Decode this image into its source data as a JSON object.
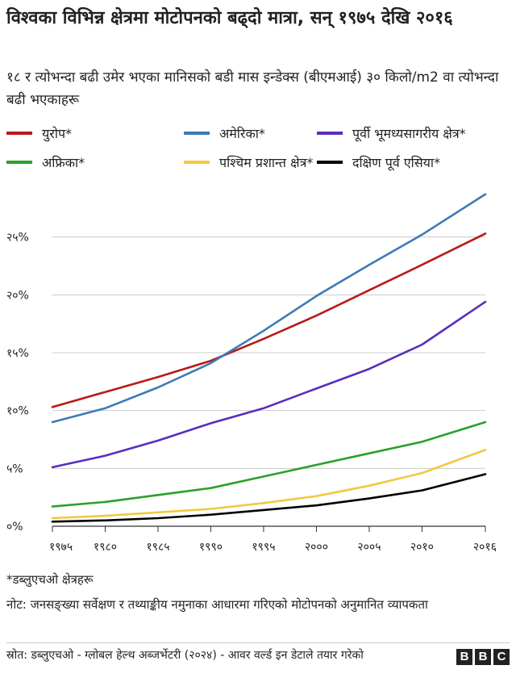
{
  "title": "विश्वका विभिन्न क्षेत्रमा मोटोपनको बढ्दो मात्रा, सन् १९७५ देखि २०१६",
  "subtitle": "१८ र त्योभन्दा बढी उमेर भएका मानिसको बडी मास इन्डेक्स (बीएमआई) ३० किलो/m2 वा त्योभन्दा बढी भएकाहरू",
  "footnote": "*डब्लुएचओ क्षेत्रहरू",
  "note": "नोट: जनसङ्ख्या सर्वेक्षण र तथ्याङ्कीय नमुनाका आधारमा गरिएको मोटोपनको अनुमानित व्यापकता",
  "source": "स्रोत: डब्लुएचओ - ग्लोबल हेल्थ अब्जर्भेटरी (२०२४) - आवर वर्ल्ड इन डेटाले तयार गरेको",
  "logo_letters": [
    "B",
    "B",
    "C"
  ],
  "chart_data": {
    "type": "line",
    "title": "विश्वका विभिन्न क्षेत्रमा मोटोपनको बढ्दो मात्रा, सन् १९७५ देखि २०१६",
    "xlabel": "",
    "ylabel": "",
    "x": [
      1975,
      1980,
      1985,
      1990,
      1995,
      2000,
      2005,
      2010,
      2016
    ],
    "xlim": [
      1975,
      2016
    ],
    "ylim": [
      0,
      30
    ],
    "x_ticks": [
      1975,
      1980,
      1985,
      1990,
      1995,
      2000,
      2005,
      2010,
      2016
    ],
    "x_tick_labels": [
      "१९७५",
      "१९८०",
      "१९८५",
      "१९९०",
      "१९९५",
      "२०००",
      "२००५",
      "२०१०",
      "२०१६"
    ],
    "y_ticks": [
      0,
      5,
      10,
      15,
      20,
      25
    ],
    "y_tick_labels": [
      "०%",
      "५%",
      "१०%",
      "१५%",
      "२०%",
      "२५%"
    ],
    "grid": true,
    "legend_position": "top",
    "series": [
      {
        "name": "युरोप*",
        "color": "#bb1919",
        "values": [
          10.3,
          11.6,
          12.9,
          14.3,
          16.2,
          18.2,
          20.4,
          22.6,
          25.3
        ]
      },
      {
        "name": "अमेरिका*",
        "color": "#3d7ab8",
        "values": [
          9.0,
          10.2,
          12.0,
          14.1,
          16.9,
          19.9,
          22.6,
          25.2,
          28.7
        ]
      },
      {
        "name": "पूर्वी भूमध्यसागरीय क्षेत्र*",
        "color": "#5a2ebd",
        "values": [
          5.1,
          6.1,
          7.4,
          8.9,
          10.2,
          11.9,
          13.6,
          15.7,
          19.4
        ]
      },
      {
        "name": "अफ्रिका*",
        "color": "#2ba02b",
        "values": [
          1.7,
          2.1,
          2.7,
          3.3,
          4.3,
          5.3,
          6.3,
          7.3,
          9.0
        ]
      },
      {
        "name": "पश्चिम प्रशान्त क्षेत्र*",
        "color": "#f2c840",
        "values": [
          0.7,
          0.9,
          1.2,
          1.5,
          2.0,
          2.6,
          3.5,
          4.6,
          6.6
        ]
      },
      {
        "name": "दक्षिण पूर्व एसिया*",
        "color": "#000000",
        "values": [
          0.4,
          0.5,
          0.7,
          1.0,
          1.4,
          1.8,
          2.4,
          3.1,
          4.5
        ]
      }
    ]
  }
}
